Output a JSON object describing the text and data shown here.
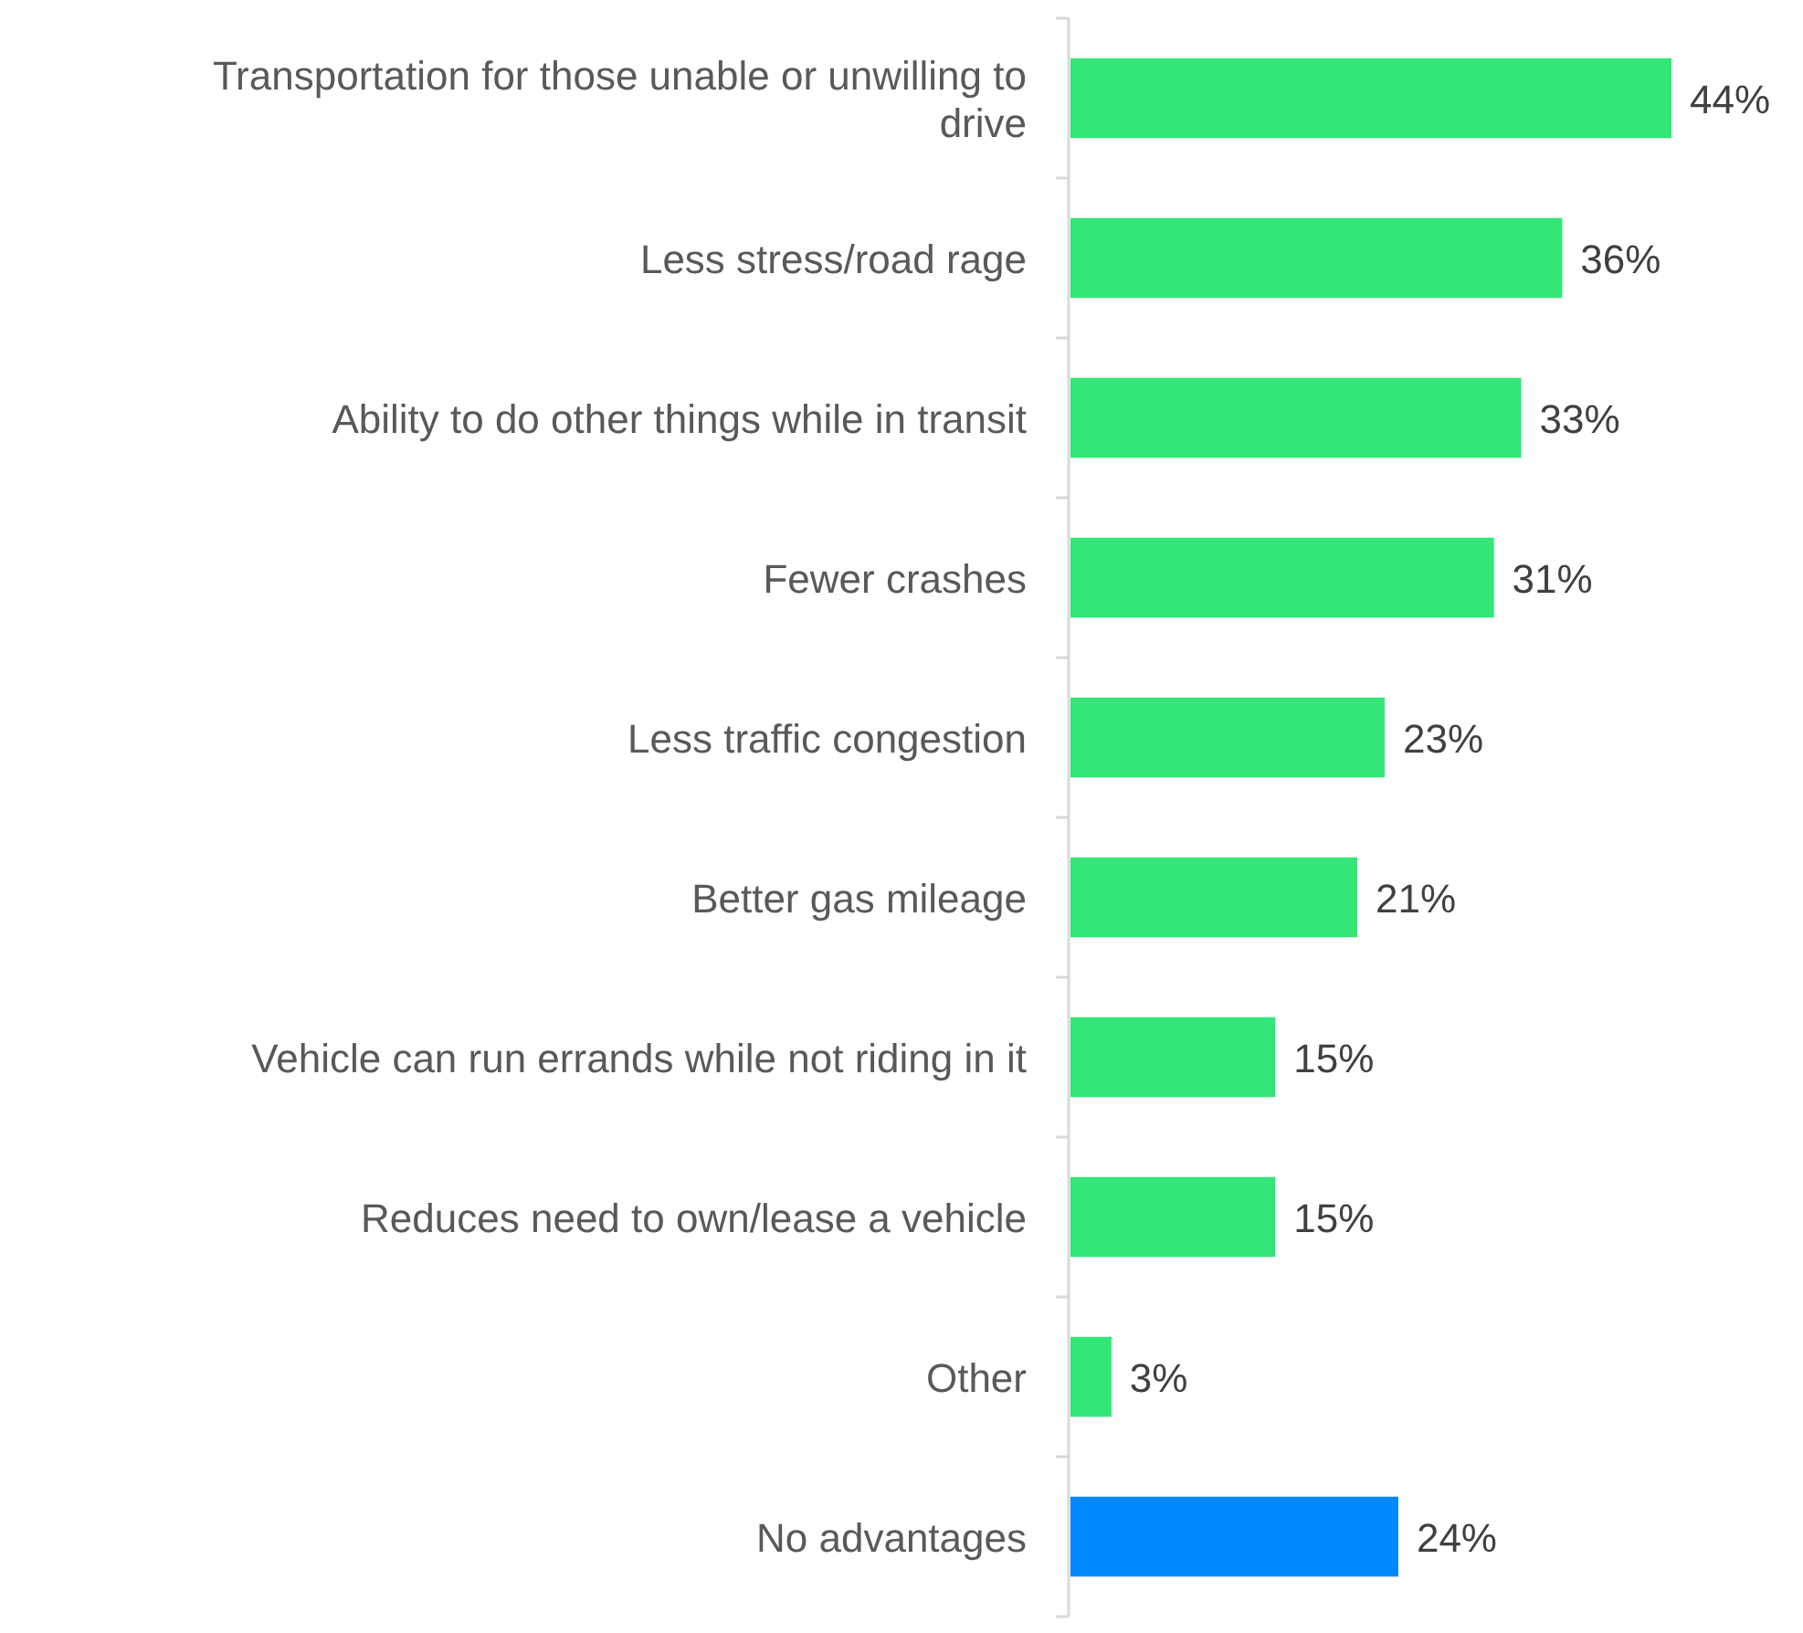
{
  "chart_data": {
    "type": "bar",
    "orientation": "horizontal",
    "categories": [
      "Transportation for those unable or unwilling to drive",
      "Less stress/road rage",
      "Ability to do other things while in transit",
      "Fewer crashes",
      "Less traffic congestion",
      "Better gas mileage",
      "Vehicle can run errands while not riding in it",
      "Reduces need to own/lease a vehicle",
      "Other",
      "No advantages"
    ],
    "values": [
      44,
      36,
      33,
      31,
      23,
      21,
      15,
      15,
      3,
      24
    ],
    "value_labels": [
      "44%",
      "36%",
      "33%",
      "31%",
      "23%",
      "21%",
      "15%",
      "15%",
      "3%",
      "24%"
    ],
    "colors": [
      "#33e677",
      "#33e677",
      "#33e677",
      "#33e677",
      "#33e677",
      "#33e677",
      "#33e677",
      "#33e677",
      "#33e677",
      "#0088ff"
    ]
  }
}
